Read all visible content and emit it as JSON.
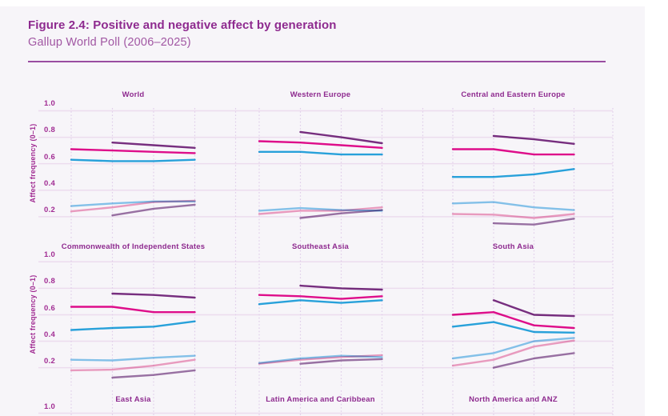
{
  "header": {
    "title": "Figure 2.4: Positive and negative affect by generation",
    "subtitle": "Gallup World Poll (2006–2025)"
  },
  "colors": {
    "page_background": "#ffffff",
    "content_background": "#f7f5f9",
    "header_title": "#8e2a8f",
    "header_subtitle": "#a157a3",
    "header_rule": "#9a4da1",
    "panel_title": "#8e2a8f",
    "tick_label": "#a12c93",
    "gridline": "#ecdcee",
    "dotted_gridline": "#e0cde9",
    "series_purple": "#7b3082",
    "series_magenta": "#e60d8d",
    "series_cyan": "#29a8e0",
    "series_lightblue": "#87c8ee",
    "series_lightpink": "#f0a0c3",
    "series_mauve": "#9d74a6"
  },
  "chart_data": {
    "type": "line",
    "title": "Positive and negative affect by generation",
    "ylabel": "Affect frequency (0–1)",
    "ylim": [
      0,
      1
    ],
    "yticks": [
      1.0,
      0.8,
      0.6,
      0.4,
      0.2
    ],
    "ytick_labels": [
      "1.0",
      "0.8",
      "0.6",
      "0.4",
      "0.2"
    ],
    "x_axis_note": "four unlabeled period points per panel (dotted gridlines); x tick labels not visible in screenshot",
    "grid": "horizontal solid lines at each y tick, vertical dotted period lines",
    "legend": "not visible in screenshot",
    "series_names": [
      "purple",
      "magenta",
      "cyan",
      "lightblue",
      "lightpink",
      "mauve"
    ],
    "panels": [
      {
        "title": "World",
        "row": 0,
        "col": 0,
        "series": {
          "purple": [
            null,
            0.76,
            0.74,
            0.72
          ],
          "magenta": [
            0.71,
            0.7,
            0.69,
            0.68
          ],
          "cyan": [
            0.63,
            0.62,
            0.62,
            0.63
          ],
          "lightblue": [
            0.28,
            0.3,
            0.315,
            0.315
          ],
          "lightpink": [
            0.24,
            0.27,
            0.31,
            0.32
          ],
          "mauve": [
            null,
            0.21,
            0.26,
            0.29
          ]
        }
      },
      {
        "title": "Western Europe",
        "row": 0,
        "col": 1,
        "series": {
          "purple": [
            null,
            0.84,
            0.8,
            0.755
          ],
          "magenta": [
            0.77,
            0.76,
            0.74,
            0.72
          ],
          "cyan": [
            0.69,
            0.69,
            0.67,
            0.67
          ],
          "lightblue": [
            0.245,
            0.265,
            0.25,
            0.245
          ],
          "lightpink": [
            0.22,
            0.245,
            0.245,
            0.27
          ],
          "mauve": [
            null,
            0.19,
            0.225,
            0.25
          ]
        }
      },
      {
        "title": "Central and Eastern Europe",
        "row": 0,
        "col": 2,
        "series": {
          "purple": [
            null,
            0.81,
            0.785,
            0.75
          ],
          "magenta": [
            0.71,
            0.71,
            0.67,
            0.67
          ],
          "cyan": [
            0.5,
            0.5,
            0.52,
            0.56
          ],
          "lightblue": [
            0.3,
            0.31,
            0.27,
            0.25
          ],
          "lightpink": [
            0.22,
            0.215,
            0.19,
            0.22
          ],
          "mauve": [
            null,
            0.15,
            0.14,
            0.185
          ]
        }
      },
      {
        "title": "Commonwealth of Independent States",
        "row": 1,
        "col": 0,
        "series": {
          "purple": [
            null,
            0.76,
            0.75,
            0.73
          ],
          "magenta": [
            0.66,
            0.66,
            0.62,
            0.62
          ],
          "cyan": [
            0.485,
            0.5,
            0.51,
            0.55
          ],
          "lightblue": [
            0.26,
            0.255,
            0.275,
            0.29
          ],
          "lightpink": [
            0.18,
            0.185,
            0.215,
            0.26
          ],
          "mauve": [
            null,
            0.125,
            0.145,
            0.18
          ]
        }
      },
      {
        "title": "Southeast Asia",
        "row": 1,
        "col": 1,
        "series": {
          "purple": [
            null,
            0.82,
            0.8,
            0.79
          ],
          "magenta": [
            0.75,
            0.74,
            0.72,
            0.74
          ],
          "cyan": [
            0.68,
            0.71,
            0.69,
            0.71
          ],
          "lightblue": [
            0.235,
            0.27,
            0.29,
            0.28
          ],
          "lightpink": [
            0.23,
            0.26,
            0.28,
            0.295
          ],
          "mauve": [
            null,
            0.23,
            0.255,
            0.265
          ]
        }
      },
      {
        "title": "South Asia",
        "row": 1,
        "col": 2,
        "series": {
          "purple": [
            null,
            0.71,
            0.6,
            0.59
          ],
          "magenta": [
            0.6,
            0.62,
            0.52,
            0.5
          ],
          "cyan": [
            0.51,
            0.545,
            0.47,
            0.465
          ],
          "lightblue": [
            0.27,
            0.31,
            0.4,
            0.425
          ],
          "lightpink": [
            0.215,
            0.26,
            0.36,
            0.405
          ],
          "mauve": [
            null,
            0.2,
            0.27,
            0.31
          ]
        }
      },
      {
        "title": "East Asia",
        "row": 2,
        "col": 0,
        "series": null
      },
      {
        "title": "Latin America and Caribbean",
        "row": 2,
        "col": 1,
        "series": null
      },
      {
        "title": "North America and ANZ",
        "row": 2,
        "col": 2,
        "series": null
      }
    ]
  }
}
